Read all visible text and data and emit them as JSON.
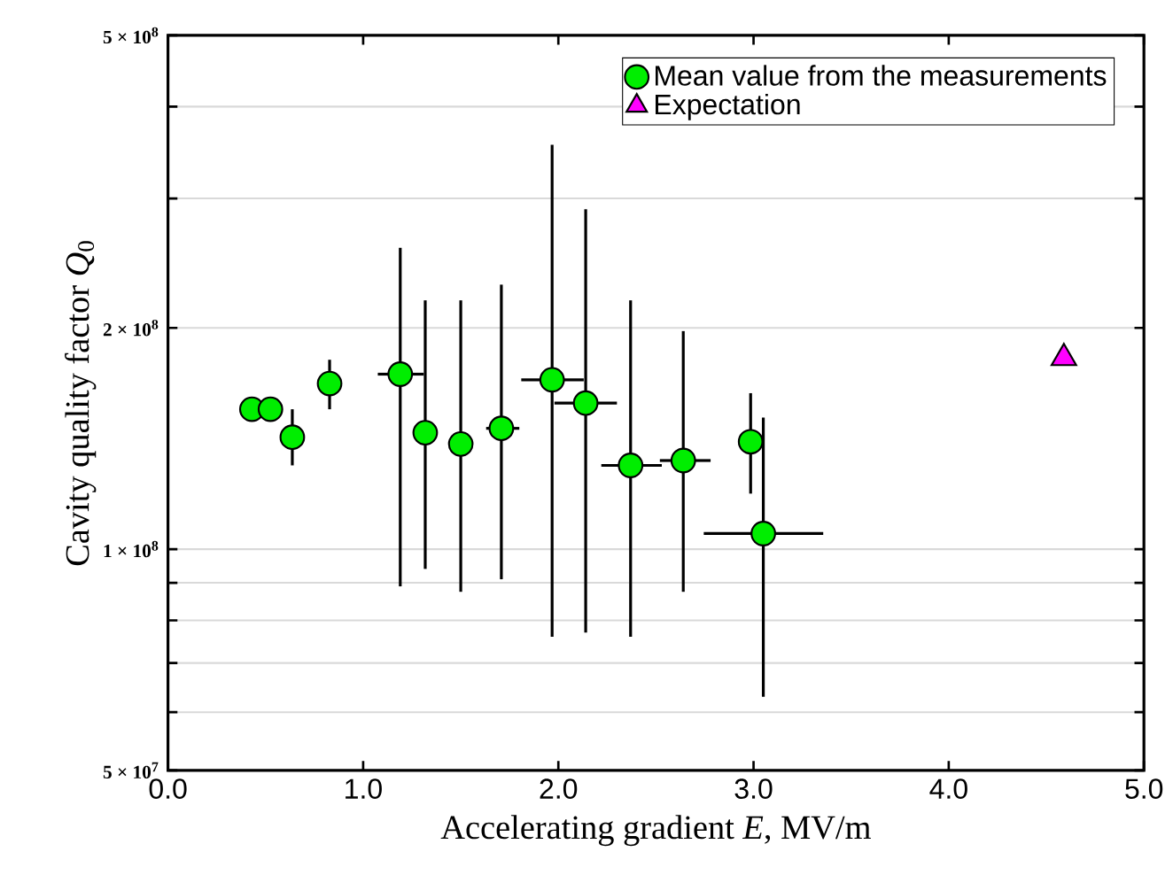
{
  "chart_data": {
    "type": "scatter",
    "xlabel": "Accelerating gradient *E*, MV/m",
    "ylabel": "Cavity quality factor *Q*$_{0}$",
    "log": "y",
    "grid": "y",
    "legend": "top right",
    "xlim": [
      0,
      5
    ],
    "xticks": [
      {
        "value": 0,
        "label": "0.0"
      },
      {
        "value": 1,
        "label": "1.0"
      },
      {
        "value": 2,
        "label": "2.0"
      },
      {
        "value": 3,
        "label": "3.0"
      },
      {
        "value": 4,
        "label": "4.0"
      },
      {
        "value": 5,
        "label": "5.0"
      }
    ],
    "ylim": [
      50000000,
      500000000
    ],
    "yticks": [
      {
        "value": 50000000,
        "label": "5 × 10$^{7}$"
      },
      {
        "value": 60000000,
        "label": null
      },
      {
        "value": 70000000,
        "label": null
      },
      {
        "value": 80000000,
        "label": null
      },
      {
        "value": 90000000,
        "label": null
      },
      {
        "value": 100000000,
        "label": "1 × 10$^{8}$"
      },
      {
        "value": 200000000,
        "label": "2 × 10$^{8}$"
      },
      {
        "value": 300000000,
        "label": null
      },
      {
        "value": 400000000,
        "label": null
      },
      {
        "value": 500000000,
        "label": "5 × 10$^{8}$"
      }
    ],
    "series": [
      {
        "name": "Mean value from the measurements",
        "color": "#00ee00",
        "marker": "circle",
        "x": [
          0.43,
          0.525,
          0.637,
          0.828,
          1.19,
          1.318,
          1.5,
          1.708,
          1.968,
          2.14,
          2.37,
          2.64,
          2.985,
          3.05
        ],
        "values": [
          155000000,
          155000000,
          142000000,
          168000000,
          173000000,
          144000000,
          139000000,
          146000000,
          170000000,
          158000000,
          130000000,
          132000000,
          140000000,
          105000000
        ],
        "errors": [
          null,
          null,
          [
            130000000,
            155000000
          ],
          [
            155000000,
            181000000
          ],
          [
            89000000,
            257000000
          ],
          [
            94000000,
            218000000
          ],
          [
            87500000,
            218000000
          ],
          [
            91000000,
            229000000
          ],
          [
            76000000,
            355000000
          ],
          [
            77000000,
            290000000
          ],
          [
            76000000,
            218000000
          ],
          [
            87500000,
            198000000
          ],
          [
            119000000,
            163000000
          ],
          [
            63000000,
            151000000
          ]
        ],
        "xerrors": [
          null,
          null,
          null,
          null,
          [
            1.075,
            1.31
          ],
          null,
          null,
          [
            1.63,
            1.8
          ],
          [
            1.81,
            2.13
          ],
          [
            1.98,
            2.3
          ],
          [
            2.22,
            2.53
          ],
          [
            2.52,
            2.78
          ],
          null,
          [
            2.745,
            3.357
          ]
        ]
      },
      {
        "name": "Expectation",
        "color": "#ff00ff",
        "marker": "triangle",
        "x": [
          4.59
        ],
        "values": [
          182000000
        ]
      }
    ]
  }
}
